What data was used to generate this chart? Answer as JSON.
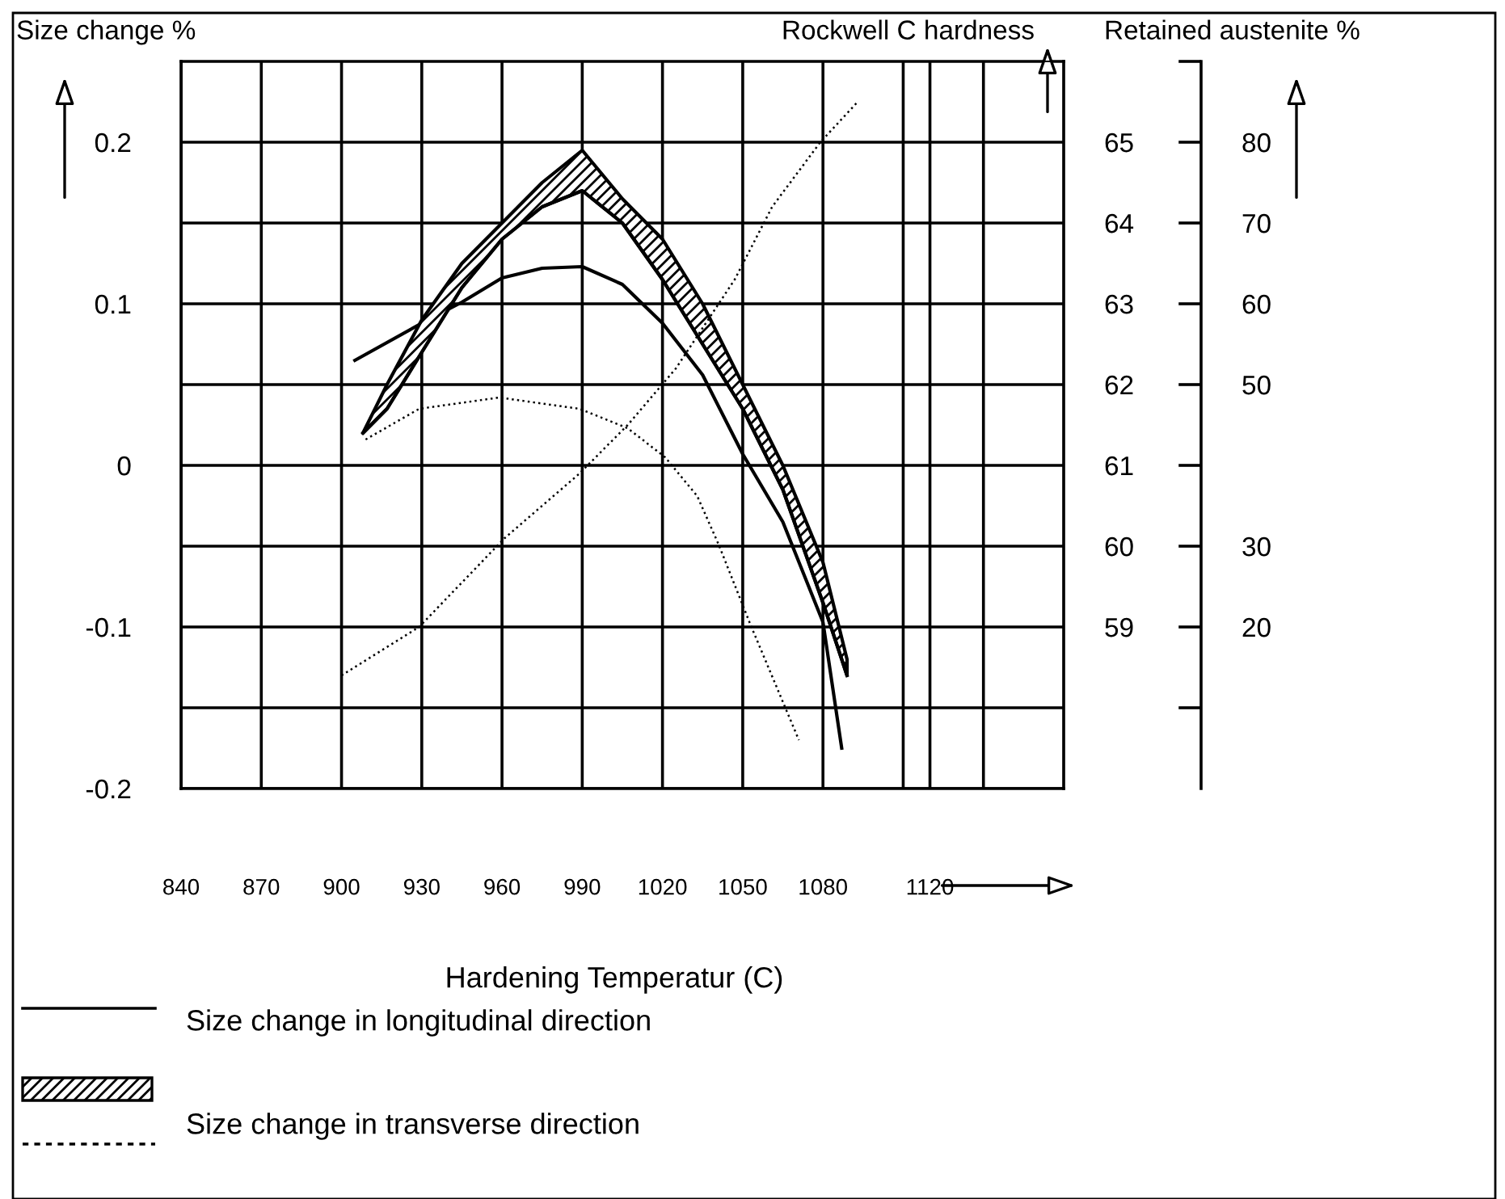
{
  "chart_data": {
    "type": "line",
    "xlabel": "Hardening Temperatur (C)",
    "ylabel": "Size change %",
    "y2label": "Rockwell C hardness",
    "y3label": "Retained austenite %",
    "xlim": [
      840,
      1170
    ],
    "xticks": [
      840,
      870,
      900,
      930,
      960,
      990,
      1020,
      1050,
      1080,
      {
        "value": 1110,
        "label": null
      },
      1120,
      {
        "value": 1140,
        "label": null
      }
    ],
    "ylim": [
      -0.2,
      0.25
    ],
    "yticks": [
      -0.2,
      {
        "value": -0.15,
        "label": null
      },
      -0.1,
      {
        "value": -0.05,
        "label": null
      },
      0,
      {
        "value": 0.05,
        "label": null
      },
      0.1,
      {
        "value": 0.15,
        "label": null
      },
      0.2
    ],
    "y2lim": [
      57,
      66
    ],
    "y2ticks": [
      59,
      60,
      61,
      62,
      63,
      64,
      65
    ],
    "y3lim": [
      0,
      90
    ],
    "y3ticks": [
      {
        "value": 10,
        "label": null
      },
      20,
      30,
      {
        "value": 40,
        "label": null
      },
      50,
      60,
      70,
      80,
      {
        "value": 90,
        "label": null
      }
    ],
    "grid": true,
    "legend": "bottom",
    "series": [
      {
        "name": "Size change in longitudinal direction",
        "color": "#000000",
        "line_style": "solid",
        "x": [
          905,
          930,
          945,
          960,
          975,
          990,
          1005,
          1020,
          1035,
          1050,
          1065,
          1080,
          1087
        ],
        "values": [
          0.065,
          0.088,
          0.101,
          0.116,
          0.122,
          0.123,
          0.112,
          0.088,
          0.056,
          0.007,
          -0.035,
          -0.097,
          -0.175
        ]
      },
      {
        "axis": "y2",
        "color": "#000000",
        "x": [
          908,
          917,
          930,
          945,
          960,
          975,
          990,
          1005,
          1020,
          1035,
          1050,
          1065,
          1080,
          1089
        ],
        "values": [
          61.4,
          61.7,
          62.4,
          63.2,
          63.8,
          64.2,
          64.4,
          64.0,
          63.3,
          62.5,
          61.7,
          60.7,
          59.3,
          58.4
        ],
        "lower": [
          61.4,
          61.7,
          62.4,
          63.2,
          63.8,
          64.2,
          64.4,
          64.0,
          63.3,
          62.5,
          61.7,
          60.7,
          59.3,
          58.4
        ],
        "upper": [
          61.4,
          62.0,
          62.8,
          63.5,
          64.0,
          64.5,
          64.9,
          64.3,
          63.8,
          63.0,
          62.0,
          61.0,
          59.8,
          58.6
        ]
      },
      {
        "name": "Size change in transverse direction",
        "color": "#000000",
        "line_style": "dotted",
        "x": [
          909,
          929,
          959,
          989,
          1007,
          1021,
          1033,
          1041,
          1053,
          1071
        ],
        "values": [
          0.016,
          0.035,
          0.042,
          0.035,
          0.023,
          0.005,
          -0.019,
          -0.049,
          -0.099,
          -0.17
        ]
      },
      {
        "axis": "y3",
        "color": "#000000",
        "line_style": "dotted",
        "x": [
          900,
          929,
          961,
          989,
          1007,
          1025,
          1047,
          1061,
          1079,
          1093
        ],
        "values": [
          14,
          20,
          31,
          39,
          45,
          52,
          63,
          72,
          80,
          85
        ]
      }
    ]
  }
}
